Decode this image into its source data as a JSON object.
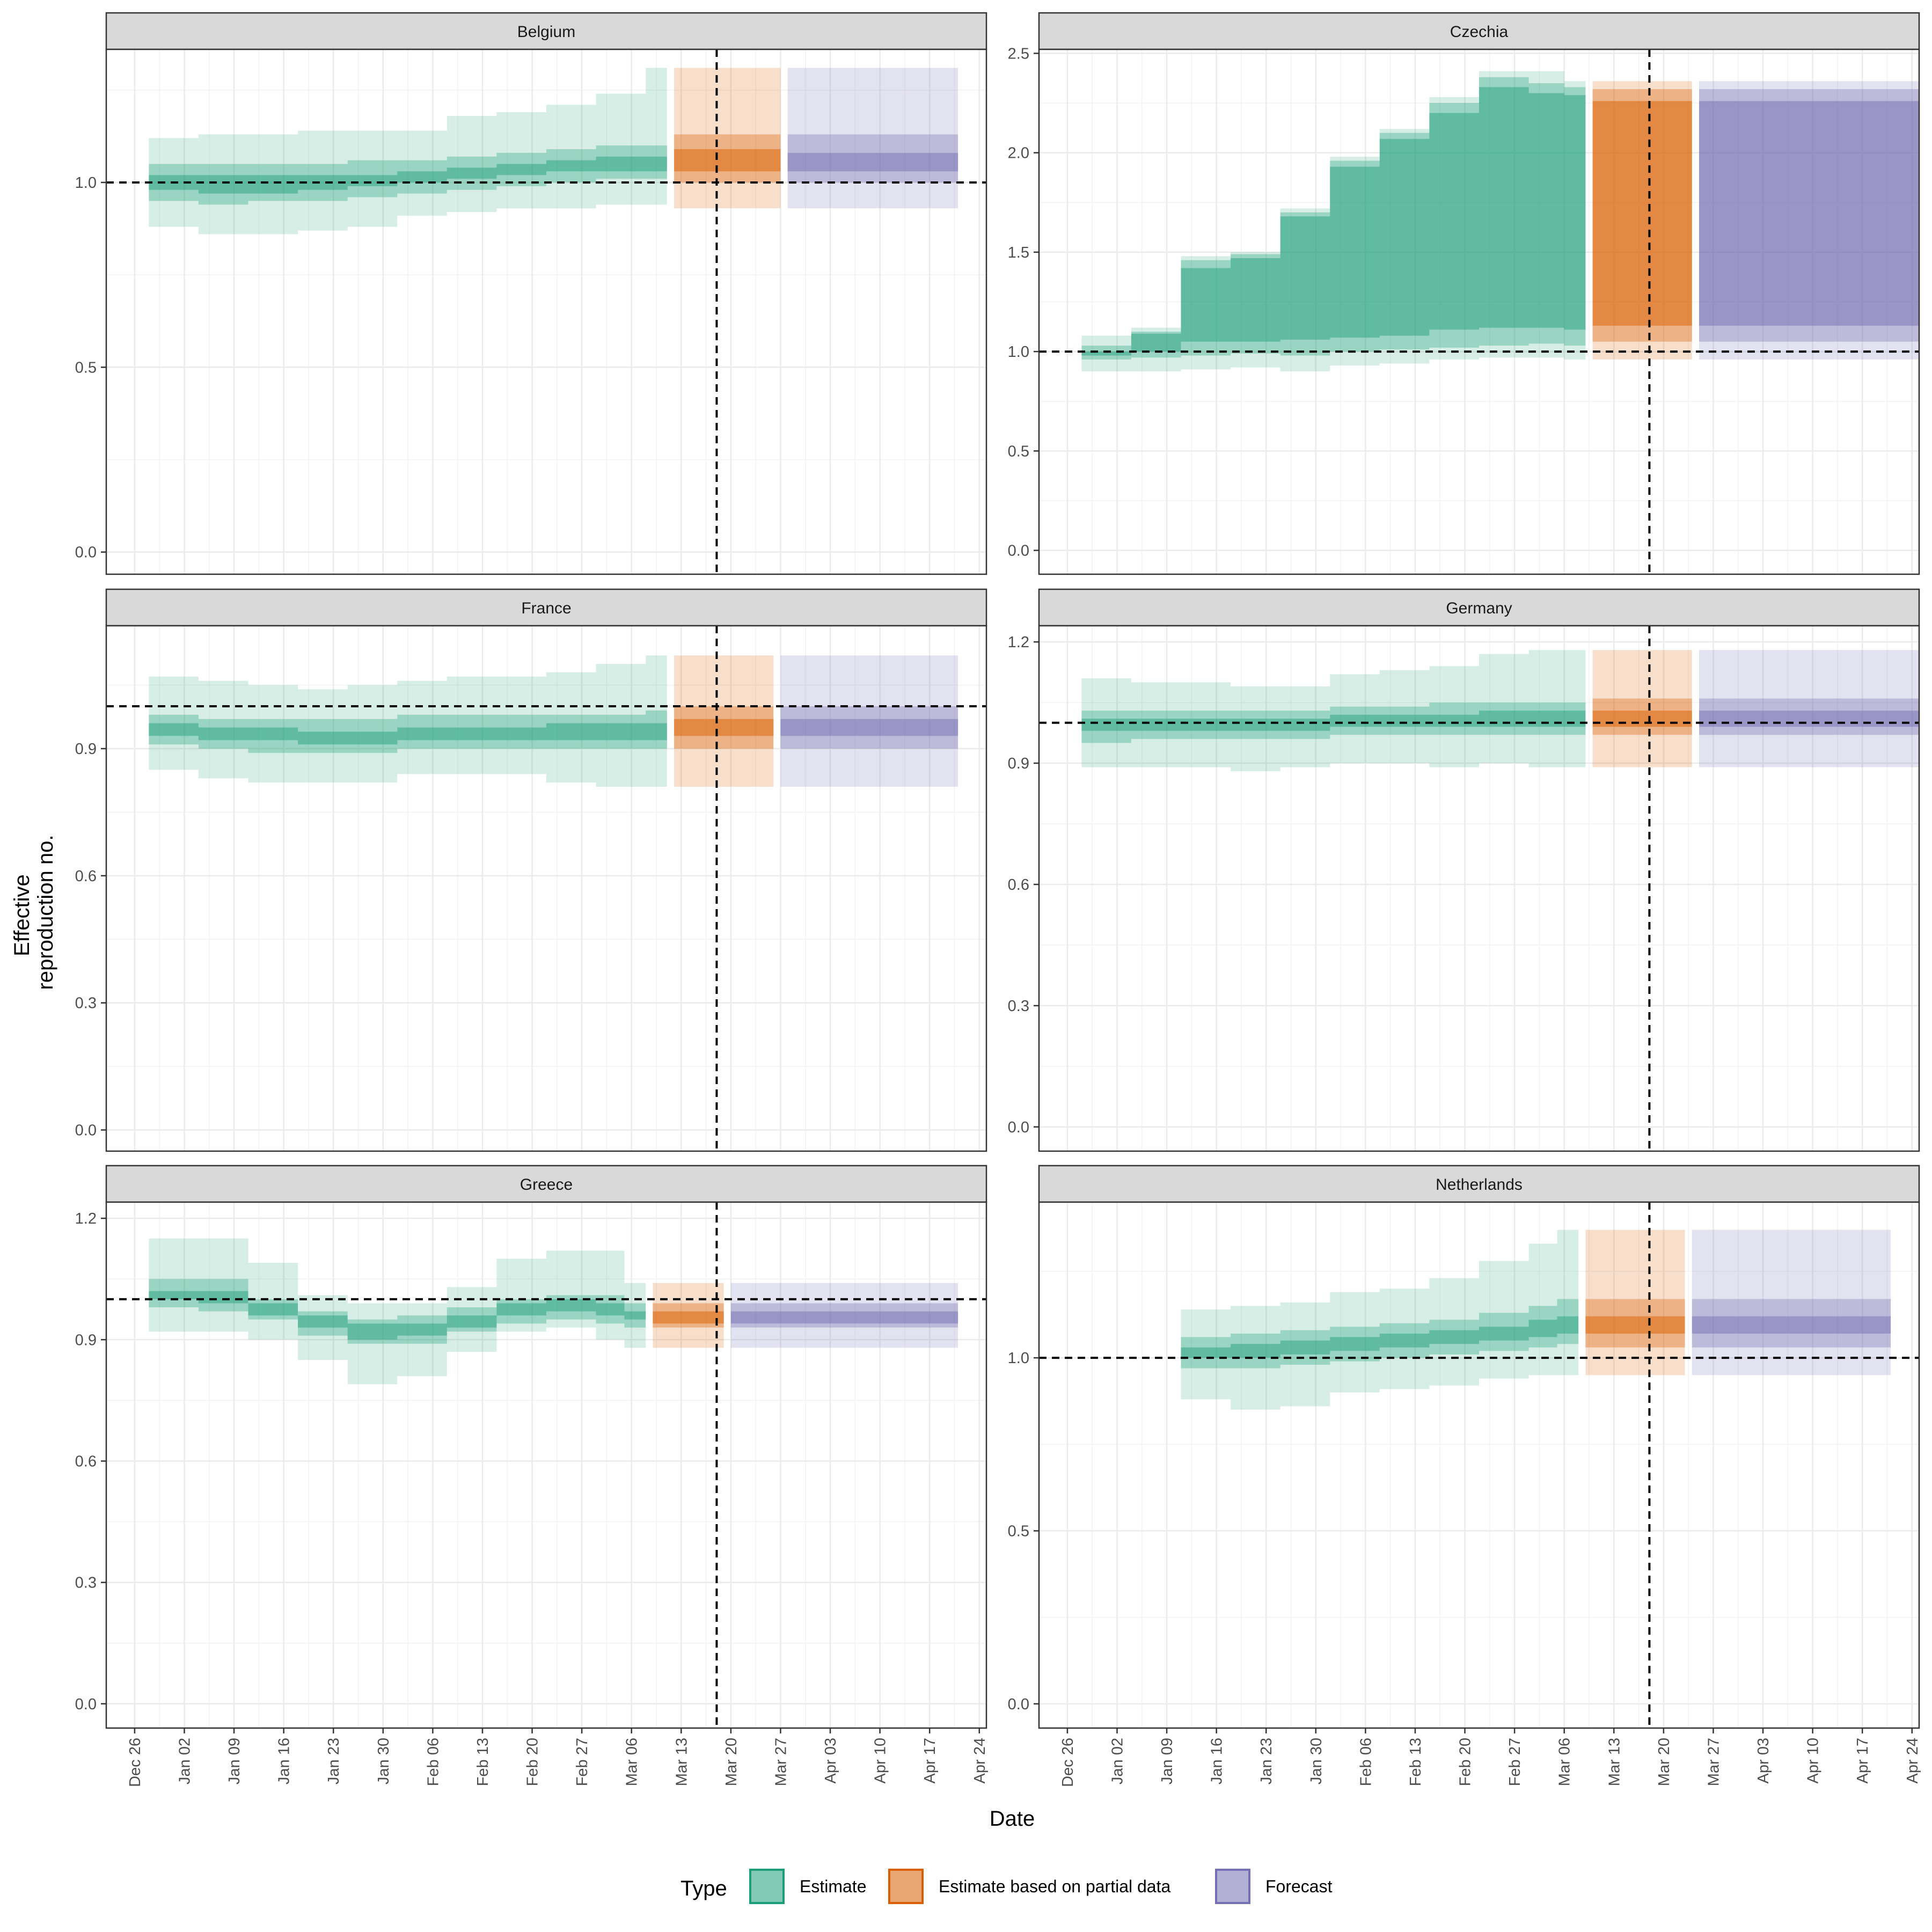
{
  "chart_data": {
    "type": "area",
    "xlabel": "Date",
    "ylabel_lines": [
      "Effective",
      "reproduction no."
    ],
    "x_ticks": [
      "Dec 26",
      "Jan 02",
      "Jan 09",
      "Jan 16",
      "Jan 23",
      "Jan 30",
      "Feb 06",
      "Feb 13",
      "Feb 20",
      "Feb 27",
      "Mar 06",
      "Mar 13",
      "Mar 20",
      "Mar 27",
      "Apr 03",
      "Apr 10",
      "Apr 17",
      "Apr 24"
    ],
    "x_range_days": [
      -4,
      120
    ],
    "vline_day": 82,
    "hline": 1.0,
    "grid": true,
    "legend": {
      "position": "bottom",
      "title": "Type",
      "entries": [
        {
          "label": "Estimate",
          "color": "#1b9e77"
        },
        {
          "label": "Estimate based on partial data",
          "color": "#d95f02"
        },
        {
          "label": "Forecast",
          "color": "#7570b3"
        }
      ]
    },
    "colors": {
      "estimate": "#1b9e77",
      "partial": "#d95f02",
      "forecast": "#7570b3"
    },
    "panels": [
      {
        "title": "Belgium",
        "ylim": [
          -0.06,
          1.36
        ],
        "yticks": [
          0.0,
          0.5,
          1.0
        ],
        "tick_labels": [
          "0.0",
          "0.5",
          "1.0"
        ],
        "estimate": [
          {
            "s": 2,
            "e": 9,
            "q": [
              0.88,
              0.95,
              0.98,
              1.02,
              1.05,
              1.12
            ]
          },
          {
            "s": 9,
            "e": 16,
            "q": [
              0.86,
              0.94,
              0.97,
              1.02,
              1.05,
              1.13
            ]
          },
          {
            "s": 16,
            "e": 23,
            "q": [
              0.86,
              0.95,
              0.97,
              1.02,
              1.05,
              1.13
            ]
          },
          {
            "s": 23,
            "e": 30,
            "q": [
              0.87,
              0.95,
              0.98,
              1.02,
              1.05,
              1.14
            ]
          },
          {
            "s": 30,
            "e": 37,
            "q": [
              0.88,
              0.96,
              0.99,
              1.02,
              1.06,
              1.14
            ]
          },
          {
            "s": 37,
            "e": 44,
            "q": [
              0.91,
              0.97,
              1.0,
              1.03,
              1.06,
              1.14
            ]
          },
          {
            "s": 44,
            "e": 51,
            "q": [
              0.92,
              0.98,
              1.01,
              1.04,
              1.07,
              1.18
            ]
          },
          {
            "s": 51,
            "e": 58,
            "q": [
              0.93,
              0.99,
              1.02,
              1.05,
              1.08,
              1.19
            ]
          },
          {
            "s": 58,
            "e": 65,
            "q": [
              0.93,
              1.0,
              1.03,
              1.06,
              1.09,
              1.21
            ]
          },
          {
            "s": 65,
            "e": 72,
            "q": [
              0.94,
              1.01,
              1.03,
              1.07,
              1.1,
              1.24
            ]
          },
          {
            "s": 72,
            "e": 75,
            "q": [
              0.94,
              1.01,
              1.03,
              1.07,
              1.1,
              1.31
            ]
          }
        ],
        "partial": {
          "s": 76,
          "e": 91,
          "q": [
            0.93,
            1.0,
            1.03,
            1.09,
            1.13,
            1.31
          ]
        },
        "forecast": {
          "s": 92,
          "e": 116,
          "q": [
            0.93,
            1.0,
            1.03,
            1.08,
            1.13,
            1.31
          ]
        }
      },
      {
        "title": "Czechia",
        "ylim": [
          -0.12,
          2.52
        ],
        "yticks": [
          0.0,
          0.5,
          1.0,
          1.5,
          2.0,
          2.5
        ],
        "tick_labels": [
          "0.0",
          "0.5",
          "1.0",
          "1.5",
          "2.0",
          "2.5"
        ],
        "estimate": [
          {
            "s": 2,
            "e": 9,
            "q": [
              0.9,
              0.96,
              0.98,
              1.0,
              1.03,
              1.08
            ]
          },
          {
            "s": 9,
            "e": 16,
            "q": [
              0.9,
              0.97,
              1.0,
              1.09,
              1.1,
              1.12
            ]
          },
          {
            "s": 16,
            "e": 23,
            "q": [
              0.91,
              0.98,
              1.05,
              1.42,
              1.46,
              1.48
            ]
          },
          {
            "s": 23,
            "e": 30,
            "q": [
              0.92,
              0.99,
              1.05,
              1.47,
              1.49,
              1.5
            ]
          },
          {
            "s": 30,
            "e": 37,
            "q": [
              0.9,
              0.98,
              1.06,
              1.68,
              1.7,
              1.72
            ]
          },
          {
            "s": 37,
            "e": 44,
            "q": [
              0.93,
              1.0,
              1.07,
              1.93,
              1.96,
              1.98
            ]
          },
          {
            "s": 44,
            "e": 51,
            "q": [
              0.94,
              1.01,
              1.08,
              2.07,
              2.1,
              2.12
            ]
          },
          {
            "s": 51,
            "e": 58,
            "q": [
              0.96,
              1.02,
              1.11,
              2.2,
              2.25,
              2.28
            ]
          },
          {
            "s": 58,
            "e": 65,
            "q": [
              0.97,
              1.03,
              1.12,
              2.33,
              2.38,
              2.41
            ]
          },
          {
            "s": 65,
            "e": 70,
            "q": [
              0.97,
              1.04,
              1.12,
              2.3,
              2.35,
              2.41
            ]
          },
          {
            "s": 70,
            "e": 73,
            "q": [
              0.96,
              1.03,
              1.11,
              2.29,
              2.33,
              2.36
            ]
          }
        ],
        "partial": {
          "s": 74,
          "e": 88,
          "q": [
            0.96,
            1.05,
            1.13,
            2.26,
            2.32,
            2.36
          ]
        },
        "forecast": {
          "s": 89,
          "e": 120,
          "q": [
            0.96,
            1.05,
            1.13,
            2.26,
            2.32,
            2.36
          ]
        }
      },
      {
        "title": "France",
        "ylim": [
          -0.05,
          1.19
        ],
        "yticks": [
          0.0,
          0.3,
          0.6,
          0.9
        ],
        "tick_labels": [
          "0.0",
          "0.3",
          "0.6",
          "0.9"
        ],
        "estimate": [
          {
            "s": 2,
            "e": 9,
            "q": [
              0.85,
              0.91,
              0.93,
              0.96,
              0.98,
              1.07
            ]
          },
          {
            "s": 9,
            "e": 16,
            "q": [
              0.83,
              0.9,
              0.92,
              0.95,
              0.97,
              1.06
            ]
          },
          {
            "s": 16,
            "e": 23,
            "q": [
              0.82,
              0.89,
              0.92,
              0.95,
              0.97,
              1.05
            ]
          },
          {
            "s": 23,
            "e": 30,
            "q": [
              0.82,
              0.89,
              0.91,
              0.94,
              0.97,
              1.04
            ]
          },
          {
            "s": 30,
            "e": 37,
            "q": [
              0.82,
              0.89,
              0.91,
              0.94,
              0.97,
              1.05
            ]
          },
          {
            "s": 37,
            "e": 44,
            "q": [
              0.84,
              0.9,
              0.92,
              0.95,
              0.98,
              1.06
            ]
          },
          {
            "s": 44,
            "e": 51,
            "q": [
              0.84,
              0.9,
              0.92,
              0.95,
              0.98,
              1.07
            ]
          },
          {
            "s": 51,
            "e": 58,
            "q": [
              0.84,
              0.9,
              0.92,
              0.95,
              0.98,
              1.07
            ]
          },
          {
            "s": 58,
            "e": 65,
            "q": [
              0.82,
              0.9,
              0.92,
              0.96,
              0.98,
              1.08
            ]
          },
          {
            "s": 65,
            "e": 72,
            "q": [
              0.81,
              0.9,
              0.92,
              0.96,
              0.98,
              1.1
            ]
          },
          {
            "s": 72,
            "e": 75,
            "q": [
              0.81,
              0.9,
              0.92,
              0.96,
              0.99,
              1.12
            ]
          }
        ],
        "partial": {
          "s": 76,
          "e": 90,
          "q": [
            0.81,
            0.9,
            0.93,
            0.97,
            1.0,
            1.12
          ]
        },
        "forecast": {
          "s": 91,
          "e": 116,
          "q": [
            0.81,
            0.9,
            0.93,
            0.97,
            1.0,
            1.12
          ]
        }
      },
      {
        "title": "Germany",
        "ylim": [
          -0.06,
          1.24
        ],
        "yticks": [
          0.0,
          0.3,
          0.6,
          0.9,
          1.2
        ],
        "tick_labels": [
          "0.0",
          "0.3",
          "0.6",
          "0.9",
          "1.2"
        ],
        "estimate": [
          {
            "s": 2,
            "e": 9,
            "q": [
              0.89,
              0.95,
              0.98,
              1.01,
              1.03,
              1.11
            ]
          },
          {
            "s": 9,
            "e": 16,
            "q": [
              0.89,
              0.96,
              0.98,
              1.01,
              1.03,
              1.1
            ]
          },
          {
            "s": 16,
            "e": 23,
            "q": [
              0.89,
              0.96,
              0.98,
              1.01,
              1.03,
              1.1
            ]
          },
          {
            "s": 23,
            "e": 30,
            "q": [
              0.88,
              0.96,
              0.98,
              1.01,
              1.03,
              1.09
            ]
          },
          {
            "s": 30,
            "e": 37,
            "q": [
              0.89,
              0.96,
              0.98,
              1.01,
              1.03,
              1.09
            ]
          },
          {
            "s": 37,
            "e": 44,
            "q": [
              0.9,
              0.97,
              0.99,
              1.02,
              1.04,
              1.12
            ]
          },
          {
            "s": 44,
            "e": 51,
            "q": [
              0.9,
              0.97,
              0.99,
              1.02,
              1.04,
              1.13
            ]
          },
          {
            "s": 51,
            "e": 58,
            "q": [
              0.89,
              0.97,
              0.99,
              1.02,
              1.05,
              1.14
            ]
          },
          {
            "s": 58,
            "e": 65,
            "q": [
              0.9,
              0.97,
              0.99,
              1.03,
              1.05,
              1.17
            ]
          },
          {
            "s": 65,
            "e": 70,
            "q": [
              0.89,
              0.97,
              0.99,
              1.03,
              1.05,
              1.18
            ]
          },
          {
            "s": 70,
            "e": 73,
            "q": [
              0.89,
              0.97,
              0.99,
              1.03,
              1.05,
              1.18
            ]
          }
        ],
        "partial": {
          "s": 74,
          "e": 88,
          "q": [
            0.89,
            0.97,
            0.99,
            1.03,
            1.06,
            1.18
          ]
        },
        "forecast": {
          "s": 89,
          "e": 120,
          "q": [
            0.89,
            0.97,
            0.99,
            1.03,
            1.06,
            1.18
          ]
        }
      },
      {
        "title": "Greece",
        "ylim": [
          -0.06,
          1.24
        ],
        "yticks": [
          0.0,
          0.3,
          0.6,
          0.9,
          1.2
        ],
        "tick_labels": [
          "0.0",
          "0.3",
          "0.6",
          "0.9",
          "1.2"
        ],
        "estimate": [
          {
            "s": 2,
            "e": 9,
            "q": [
              0.92,
              0.98,
              1.0,
              1.02,
              1.05,
              1.15
            ]
          },
          {
            "s": 9,
            "e": 16,
            "q": [
              0.92,
              0.97,
              0.99,
              1.02,
              1.05,
              1.15
            ]
          },
          {
            "s": 16,
            "e": 23,
            "q": [
              0.9,
              0.95,
              0.96,
              0.99,
              1.0,
              1.09
            ]
          },
          {
            "s": 23,
            "e": 30,
            "q": [
              0.85,
              0.91,
              0.93,
              0.96,
              0.97,
              1.01
            ]
          },
          {
            "s": 30,
            "e": 37,
            "q": [
              0.79,
              0.89,
              0.9,
              0.94,
              0.95,
              0.99
            ]
          },
          {
            "s": 37,
            "e": 44,
            "q": [
              0.81,
              0.89,
              0.91,
              0.94,
              0.96,
              0.99
            ]
          },
          {
            "s": 44,
            "e": 51,
            "q": [
              0.87,
              0.92,
              0.93,
              0.96,
              0.98,
              1.03
            ]
          },
          {
            "s": 51,
            "e": 58,
            "q": [
              0.92,
              0.94,
              0.96,
              0.99,
              1.0,
              1.1
            ]
          },
          {
            "s": 58,
            "e": 65,
            "q": [
              0.93,
              0.95,
              0.97,
              1.0,
              1.01,
              1.12
            ]
          },
          {
            "s": 65,
            "e": 69,
            "q": [
              0.9,
              0.94,
              0.96,
              0.99,
              1.01,
              1.12
            ]
          },
          {
            "s": 69,
            "e": 72,
            "q": [
              0.88,
              0.93,
              0.95,
              0.97,
              0.99,
              1.04
            ]
          }
        ],
        "partial": {
          "s": 73,
          "e": 83,
          "q": [
            0.88,
            0.93,
            0.94,
            0.97,
            0.99,
            1.04
          ]
        },
        "forecast": {
          "s": 84,
          "e": 116,
          "q": [
            0.88,
            0.93,
            0.94,
            0.97,
            0.99,
            1.04
          ]
        }
      },
      {
        "title": "Netherlands",
        "ylim": [
          -0.07,
          1.45
        ],
        "yticks": [
          0.0,
          0.5,
          1.0
        ],
        "tick_labels": [
          "0.0",
          "0.5",
          "1.0"
        ],
        "estimate": [
          {
            "s": 16,
            "e": 23,
            "q": [
              0.88,
              0.97,
              1.0,
              1.03,
              1.06,
              1.14
            ]
          },
          {
            "s": 23,
            "e": 30,
            "q": [
              0.85,
              0.97,
              1.0,
              1.04,
              1.07,
              1.15
            ]
          },
          {
            "s": 30,
            "e": 37,
            "q": [
              0.86,
              0.98,
              1.01,
              1.05,
              1.08,
              1.16
            ]
          },
          {
            "s": 37,
            "e": 44,
            "q": [
              0.9,
              0.99,
              1.02,
              1.06,
              1.09,
              1.19
            ]
          },
          {
            "s": 44,
            "e": 51,
            "q": [
              0.91,
              1.0,
              1.03,
              1.07,
              1.1,
              1.2
            ]
          },
          {
            "s": 51,
            "e": 58,
            "q": [
              0.92,
              1.01,
              1.04,
              1.08,
              1.11,
              1.23
            ]
          },
          {
            "s": 58,
            "e": 65,
            "q": [
              0.94,
              1.02,
              1.05,
              1.09,
              1.13,
              1.28
            ]
          },
          {
            "s": 65,
            "e": 69,
            "q": [
              0.95,
              1.03,
              1.06,
              1.11,
              1.15,
              1.33
            ]
          },
          {
            "s": 69,
            "e": 72,
            "q": [
              0.95,
              1.04,
              1.07,
              1.12,
              1.17,
              1.37
            ]
          }
        ],
        "partial": {
          "s": 73,
          "e": 87,
          "q": [
            0.95,
            1.03,
            1.07,
            1.12,
            1.17,
            1.37
          ]
        },
        "forecast": {
          "s": 88,
          "e": 116,
          "q": [
            0.95,
            1.03,
            1.07,
            1.12,
            1.17,
            1.37
          ]
        }
      }
    ]
  }
}
